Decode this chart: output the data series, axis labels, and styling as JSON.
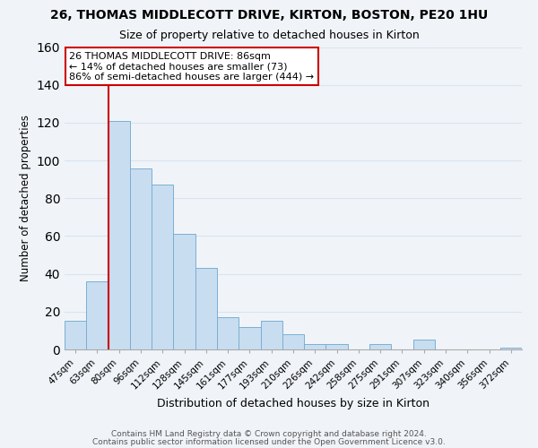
{
  "title": "26, THOMAS MIDDLECOTT DRIVE, KIRTON, BOSTON, PE20 1HU",
  "subtitle": "Size of property relative to detached houses in Kirton",
  "xlabel": "Distribution of detached houses by size in Kirton",
  "ylabel": "Number of detached properties",
  "bar_color": "#c8ddf0",
  "bar_edge_color": "#7aafd4",
  "bin_labels": [
    "47sqm",
    "63sqm",
    "80sqm",
    "96sqm",
    "112sqm",
    "128sqm",
    "145sqm",
    "161sqm",
    "177sqm",
    "193sqm",
    "210sqm",
    "226sqm",
    "242sqm",
    "258sqm",
    "275sqm",
    "291sqm",
    "307sqm",
    "323sqm",
    "340sqm",
    "356sqm",
    "372sqm"
  ],
  "bar_heights": [
    15,
    36,
    121,
    96,
    87,
    61,
    43,
    17,
    12,
    15,
    8,
    3,
    3,
    0,
    3,
    0,
    5,
    0,
    0,
    0,
    1
  ],
  "vline_color": "#cc0000",
  "ylim": [
    0,
    160
  ],
  "yticks": [
    0,
    20,
    40,
    60,
    80,
    100,
    120,
    140,
    160
  ],
  "annotation_lines": [
    "26 THOMAS MIDDLECOTT DRIVE: 86sqm",
    "← 14% of detached houses are smaller (73)",
    "86% of semi-detached houses are larger (444) →"
  ],
  "footer_lines": [
    "Contains HM Land Registry data © Crown copyright and database right 2024.",
    "Contains public sector information licensed under the Open Government Licence v3.0."
  ],
  "grid_color": "#d8e4f0",
  "background_color": "#f0f4f8"
}
